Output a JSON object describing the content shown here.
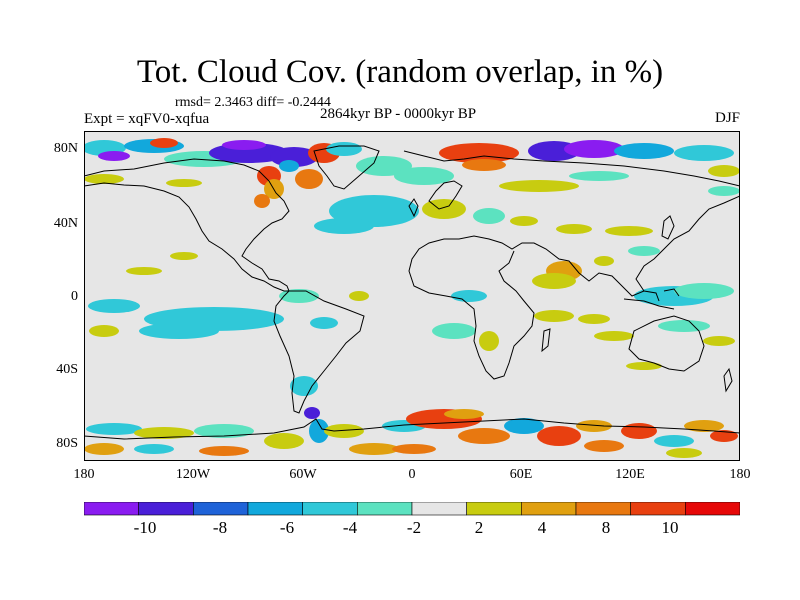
{
  "title": "Tot. Cloud Cov. (random overlap, in %)",
  "stats": "rmsd= 2.3463 diff= -0.2444",
  "experiment": "Expt = xqFV0-xqfua",
  "period": "2864kyr BP - 0000kyr BP",
  "season": "DJF",
  "y_ticks": [
    "80N",
    "40N",
    "0",
    "40S",
    "80S"
  ],
  "x_ticks": [
    "180",
    "120W",
    "60W",
    "0",
    "60E",
    "120E",
    "180"
  ],
  "colorbar": {
    "colors": [
      "#8a1cf0",
      "#4a1fd8",
      "#1f63d8",
      "#12a8dc",
      "#30c8d8",
      "#5ce2c0",
      "#e6e6e6",
      "#c8cc10",
      "#e0a010",
      "#e87810",
      "#e84010",
      "#e60808"
    ],
    "labels": [
      "-10",
      "-8",
      "-6",
      "-4",
      "-2",
      "2",
      "4",
      "8",
      "10"
    ]
  },
  "colors": {
    "land_fill": "#e6e6e6",
    "coast": "#000000"
  }
}
